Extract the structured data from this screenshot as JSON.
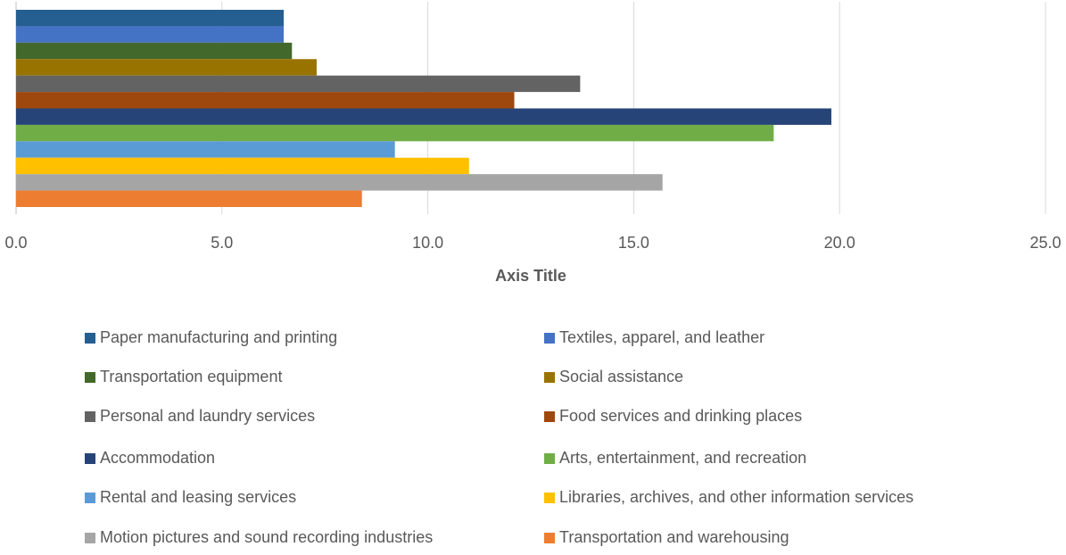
{
  "chart_data": {
    "type": "bar",
    "orientation": "horizontal",
    "x_label": "Axis Title",
    "categories": [
      null
    ],
    "series": [
      {
        "name": "Paper manufacturing and printing",
        "color": "#255e91",
        "values": [
          6.5
        ]
      },
      {
        "name": "Textiles, apparel, and leather",
        "color": "#4472c4",
        "values": [
          6.5
        ]
      },
      {
        "name": "Transportation equipment",
        "color": "#43682b",
        "values": [
          6.7
        ]
      },
      {
        "name": "Social assistance",
        "color": "#997300",
        "values": [
          7.3
        ]
      },
      {
        "name": "Personal and laundry services",
        "color": "#636363",
        "values": [
          13.7
        ]
      },
      {
        "name": "Food services and drinking places",
        "color": "#9e480e",
        "values": [
          12.1
        ]
      },
      {
        "name": "Accommodation",
        "color": "#264478",
        "values": [
          19.8
        ]
      },
      {
        "name": "Arts, entertainment, and recreation",
        "color": "#70ad47",
        "values": [
          18.4
        ]
      },
      {
        "name": "Rental and leasing services",
        "color": "#5b9bd5",
        "values": [
          9.2
        ]
      },
      {
        "name": "Libraries, archives, and other information services",
        "color": "#ffc000",
        "values": [
          11.0
        ]
      },
      {
        "name": "Motion pictures and sound recording industries",
        "color": "#a5a5a5",
        "values": [
          15.7
        ]
      },
      {
        "name": "Transportation and warehousing",
        "color": "#ed7d31",
        "values": [
          8.4
        ]
      }
    ],
    "xlim": [
      0,
      25
    ],
    "xticks": [
      {
        "value": 0,
        "label": "0.0"
      },
      {
        "value": 5,
        "label": "5.0"
      },
      {
        "value": 10,
        "label": "10.0"
      },
      {
        "value": 15,
        "label": "15.0"
      },
      {
        "value": 20,
        "label": "20.0"
      },
      {
        "value": 25,
        "label": "25.0"
      }
    ],
    "grid": true,
    "legend": "bottom"
  }
}
